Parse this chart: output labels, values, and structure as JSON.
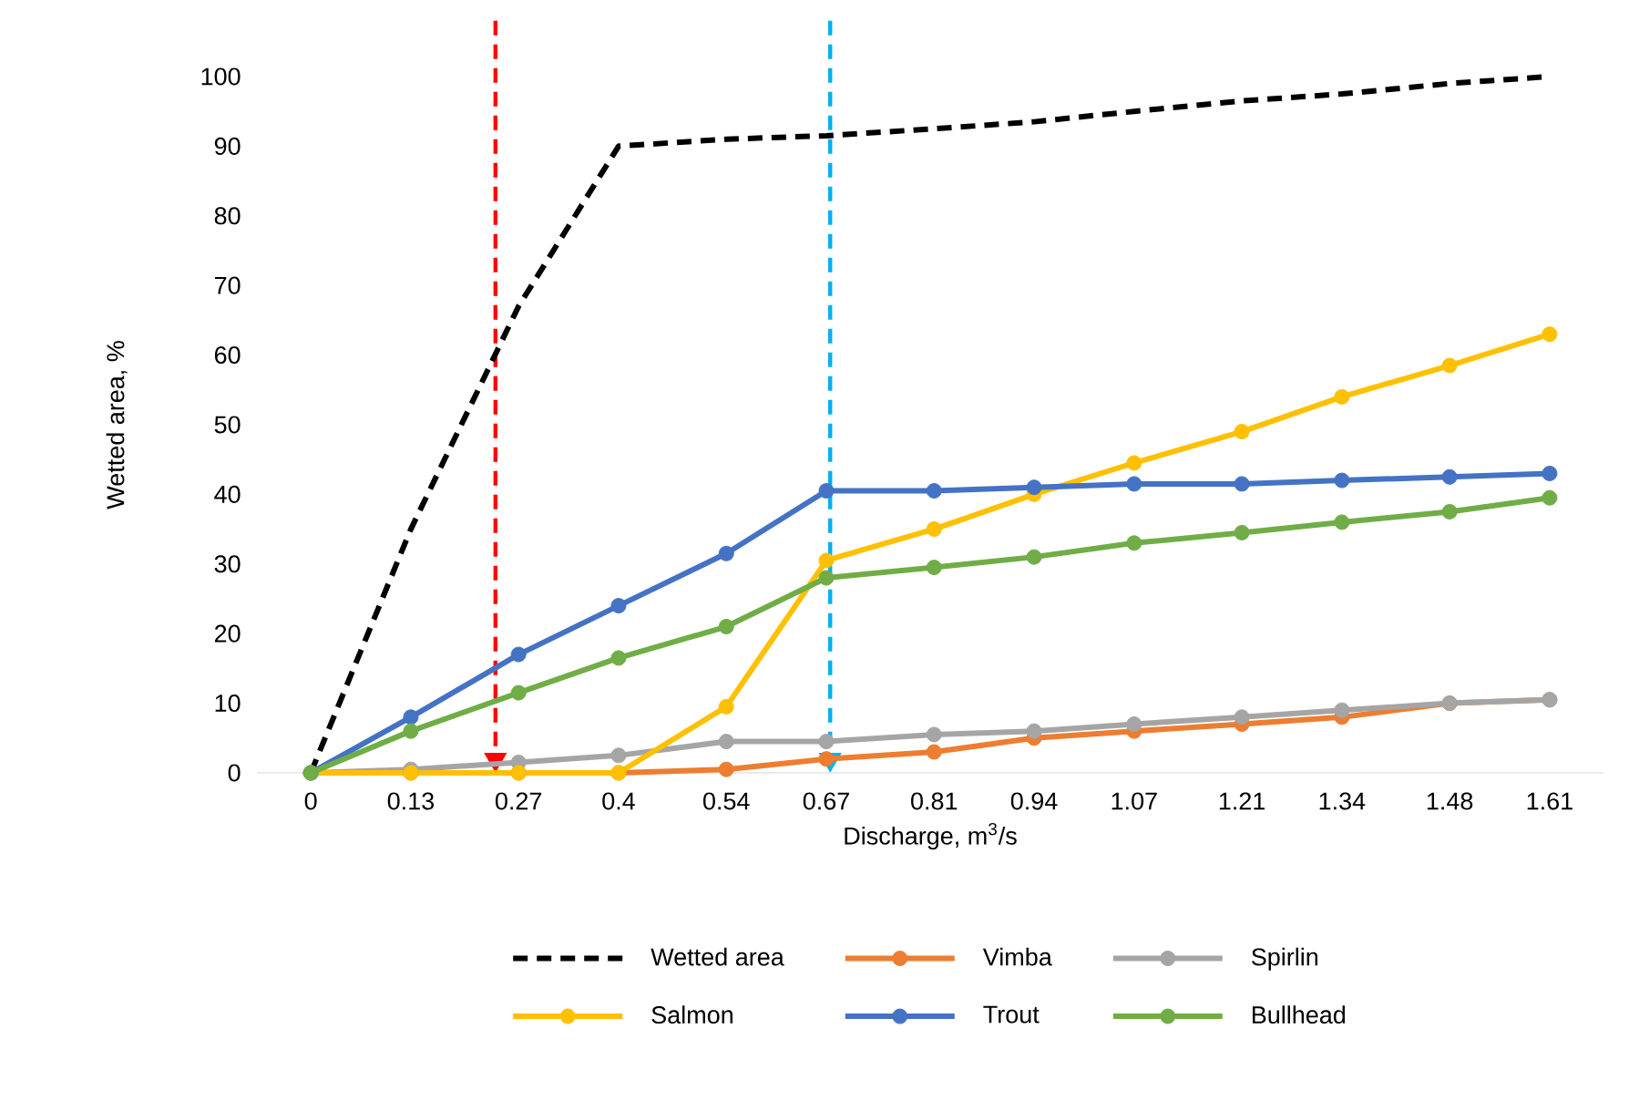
{
  "chart_data": {
    "type": "line",
    "xlabel": "Discharge, m$^{3}$/s",
    "ylabel": "Wetted area, %",
    "x": [
      0,
      0.13,
      0.27,
      0.4,
      0.54,
      0.67,
      0.81,
      0.94,
      1.07,
      1.21,
      1.34,
      1.48,
      1.61
    ],
    "xlim": [
      -0.07,
      1.68
    ],
    "xticks": [
      0,
      0.13,
      0.27,
      0.4,
      0.54,
      0.67,
      0.81,
      0.94,
      1.07,
      1.21,
      1.34,
      1.48,
      1.61
    ],
    "ylim": [
      0,
      100
    ],
    "yticks": [
      0,
      10,
      20,
      30,
      40,
      50,
      60,
      70,
      80,
      90,
      100
    ],
    "series": [
      {
        "name": "Wetted area",
        "color": "#000000",
        "line_style": "dashed",
        "marker": "none",
        "values": [
          0,
          35,
          67,
          90,
          91,
          91.5,
          92.5,
          93.5,
          95,
          96.5,
          97.5,
          99,
          100
        ]
      },
      {
        "name": "Vimba",
        "color": "#ed7d31",
        "values": [
          0,
          0,
          0,
          0,
          0.5,
          2,
          3,
          5,
          6,
          7,
          8,
          10,
          10.5
        ]
      },
      {
        "name": "Spirlin",
        "color": "#a5a5a5",
        "values": [
          0,
          0.5,
          1.5,
          2.5,
          4.5,
          4.5,
          5.5,
          6,
          7,
          8,
          9,
          10,
          10.5
        ]
      },
      {
        "name": "Salmon",
        "color": "#ffc000",
        "values": [
          0,
          0,
          0,
          0,
          9.5,
          30.5,
          35,
          40,
          44.5,
          49,
          54,
          58.5,
          63
        ]
      },
      {
        "name": "Trout",
        "color": "#4472c4",
        "values": [
          0,
          8,
          17,
          24,
          31.5,
          40.5,
          40.5,
          41,
          41.5,
          41.5,
          42,
          42.5,
          43
        ]
      },
      {
        "name": "Bullhead",
        "color": "#70ad47",
        "values": [
          0,
          6,
          11.5,
          16.5,
          21,
          28,
          29.5,
          31,
          33,
          34.5,
          36,
          37.5,
          39.5
        ]
      }
    ],
    "ref_lines": [
      {
        "axis": "x",
        "value": 0.24,
        "color": "#ff0000",
        "line_style": "dashed"
      },
      {
        "axis": "x",
        "value": 0.675,
        "color": "#00b0f0",
        "line_style": "dashed"
      }
    ],
    "marker": "circle",
    "line_style": "solid",
    "grid": false,
    "legend": "bottom"
  }
}
